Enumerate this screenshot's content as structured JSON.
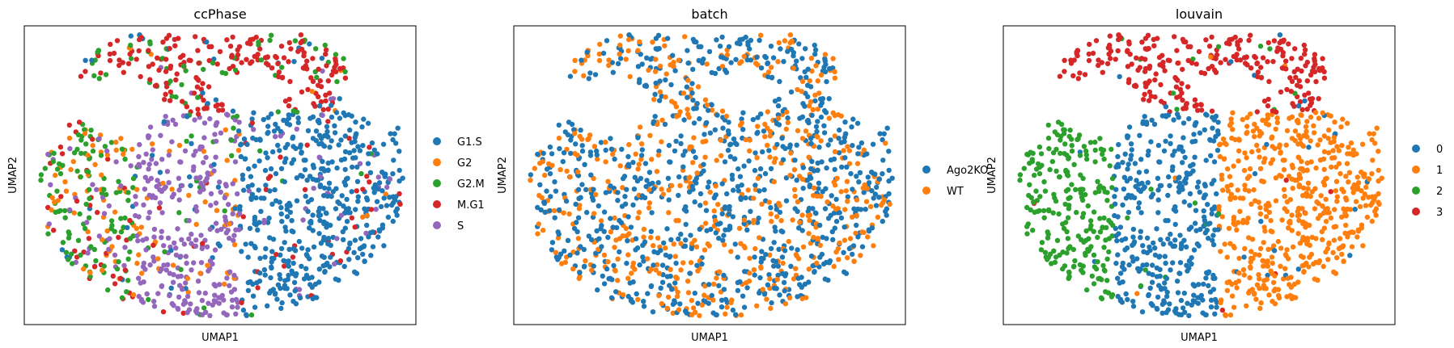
{
  "chart_data": [
    {
      "type": "scatter",
      "title": "ccPhase",
      "xlabel": "UMAP1",
      "ylabel": "UMAP2",
      "grid": false,
      "legend_position": "right",
      "categories": [
        "G1.S",
        "G2",
        "G2.M",
        "M.G1",
        "S"
      ],
      "colors": [
        "#1f77b4",
        "#ff7f0e",
        "#2ca02c",
        "#d62728",
        "#9467bd"
      ],
      "region_weights": {
        "left": [
          0.03,
          0.3,
          0.4,
          0.17,
          0.1
        ],
        "center": [
          0.06,
          0.14,
          0.05,
          0.03,
          0.72
        ],
        "right": [
          0.88,
          0.01,
          0.01,
          0.06,
          0.04
        ],
        "top": [
          0.07,
          0.02,
          0.22,
          0.67,
          0.02
        ]
      }
    },
    {
      "type": "scatter",
      "title": "batch",
      "xlabel": "UMAP1",
      "ylabel": "UMAP2",
      "grid": false,
      "legend_position": "right",
      "categories": [
        "Ago2KO",
        "WT"
      ],
      "colors": [
        "#1f77b4",
        "#ff7f0e"
      ],
      "region_weights": {
        "left": [
          0.58,
          0.42
        ],
        "center": [
          0.58,
          0.42
        ],
        "right": [
          0.58,
          0.42
        ],
        "top": [
          0.58,
          0.42
        ]
      }
    },
    {
      "type": "scatter",
      "title": "louvain",
      "xlabel": "UMAP1",
      "ylabel": "UMAP2",
      "grid": false,
      "legend_position": "right",
      "categories": [
        "0",
        "1",
        "2",
        "3"
      ],
      "colors": [
        "#1f77b4",
        "#ff7f0e",
        "#2ca02c",
        "#d62728"
      ],
      "region_weights": {
        "left": [
          0.02,
          0.0,
          0.97,
          0.01
        ],
        "center": [
          0.97,
          0.01,
          0.02,
          0.0
        ],
        "right": [
          0.04,
          0.95,
          0.0,
          0.01
        ],
        "top": [
          0.02,
          0.01,
          0.05,
          0.92
        ]
      }
    }
  ]
}
